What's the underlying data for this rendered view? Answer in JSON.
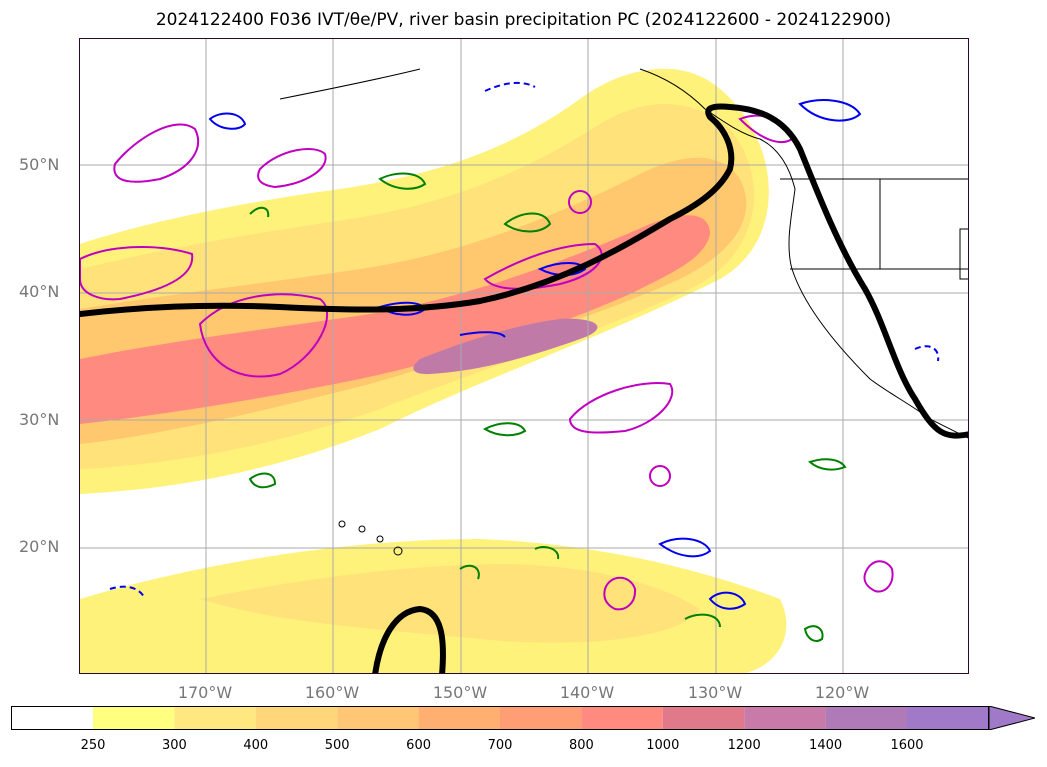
{
  "title": "2024122400 F036 IVT/θe/PV, river basin precipitation PC (2024122600 - 2024122900)",
  "lat_labels": [
    "50°N",
    "40°N",
    "30°N",
    "20°N"
  ],
  "lon_labels": [
    "170°W",
    "160°W",
    "150°W",
    "140°W",
    "130°W",
    "120°W"
  ],
  "colorbar": {
    "ticks": [
      "250",
      "300",
      "400",
      "500",
      "600",
      "700",
      "800",
      "1000",
      "1200",
      "1400",
      "1600"
    ],
    "colors": [
      "#ffffff",
      "#ffff80",
      "#ffe880",
      "#ffd67a",
      "#ffc675",
      "#ffb070",
      "#ff9e75",
      "#ff8a80",
      "#e07a8a",
      "#c87aa8",
      "#b07ab8",
      "#a07ac8"
    ]
  },
  "colors": {
    "ivt_band_light": "#fff27a",
    "ivt_band_mid": "#ffc86e",
    "ivt_band_core": "#ff8a80",
    "ivt_band_max": "#c07aa8",
    "contour_magenta": "#c000c0",
    "contour_blue": "#0000ee",
    "contour_green": "#008000",
    "thick_contour": "#000000",
    "gridline": "#aaaaaa"
  }
}
